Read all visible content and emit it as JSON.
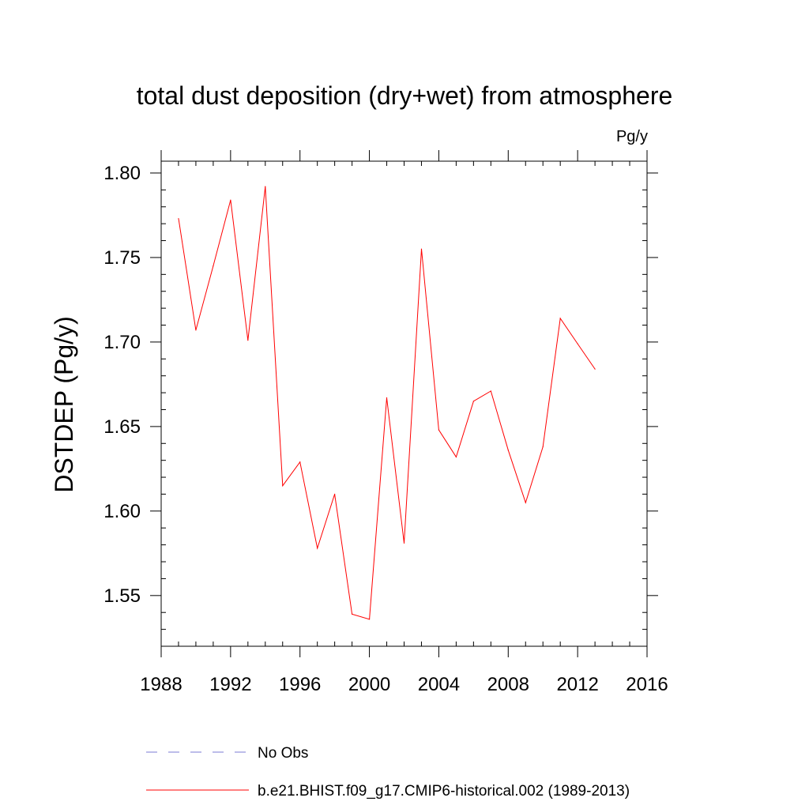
{
  "chart_data": {
    "type": "line",
    "title": "total dust deposition (dry+wet) from atmosphere",
    "units_label": "Pg/y",
    "ylabel": "DSTDEP  (Pg/y)",
    "xlabel": "",
    "xlim": [
      1988,
      2016
    ],
    "ylim": [
      1.52,
      1.807
    ],
    "x_ticks": [
      1988,
      1992,
      1996,
      2000,
      2004,
      2008,
      2012,
      2016
    ],
    "x_tick_labels": [
      "1988",
      "1992",
      "1996",
      "2000",
      "2004",
      "2008",
      "2012",
      "2016"
    ],
    "y_ticks": [
      1.55,
      1.6,
      1.65,
      1.7,
      1.75,
      1.8
    ],
    "y_tick_labels": [
      "1.55",
      "1.60",
      "1.65",
      "1.70",
      "1.75",
      "1.80"
    ],
    "grid": false,
    "legend_position": "bottom",
    "series": [
      {
        "name": "No Obs",
        "color": "#7b7bd6",
        "style": "dashed",
        "x": [],
        "y": []
      },
      {
        "name": "b.e21.BHIST.f09_g17.CMIP6-historical.002 (1989-2013)",
        "color": "#ff0000",
        "style": "solid",
        "x": [
          1989,
          1990,
          1991,
          1992,
          1993,
          1994,
          1995,
          1996,
          1997,
          1998,
          1999,
          2000,
          2001,
          2002,
          2003,
          2004,
          2005,
          2006,
          2007,
          2008,
          2009,
          2010,
          2011,
          2012,
          2013
        ],
        "y": [
          1.773,
          1.707,
          1.745,
          1.784,
          1.701,
          1.792,
          1.615,
          1.629,
          1.578,
          1.61,
          1.539,
          1.536,
          1.667,
          1.581,
          1.755,
          1.648,
          1.632,
          1.665,
          1.671,
          1.636,
          1.605,
          1.638,
          1.714,
          1.699,
          1.684
        ]
      }
    ]
  }
}
